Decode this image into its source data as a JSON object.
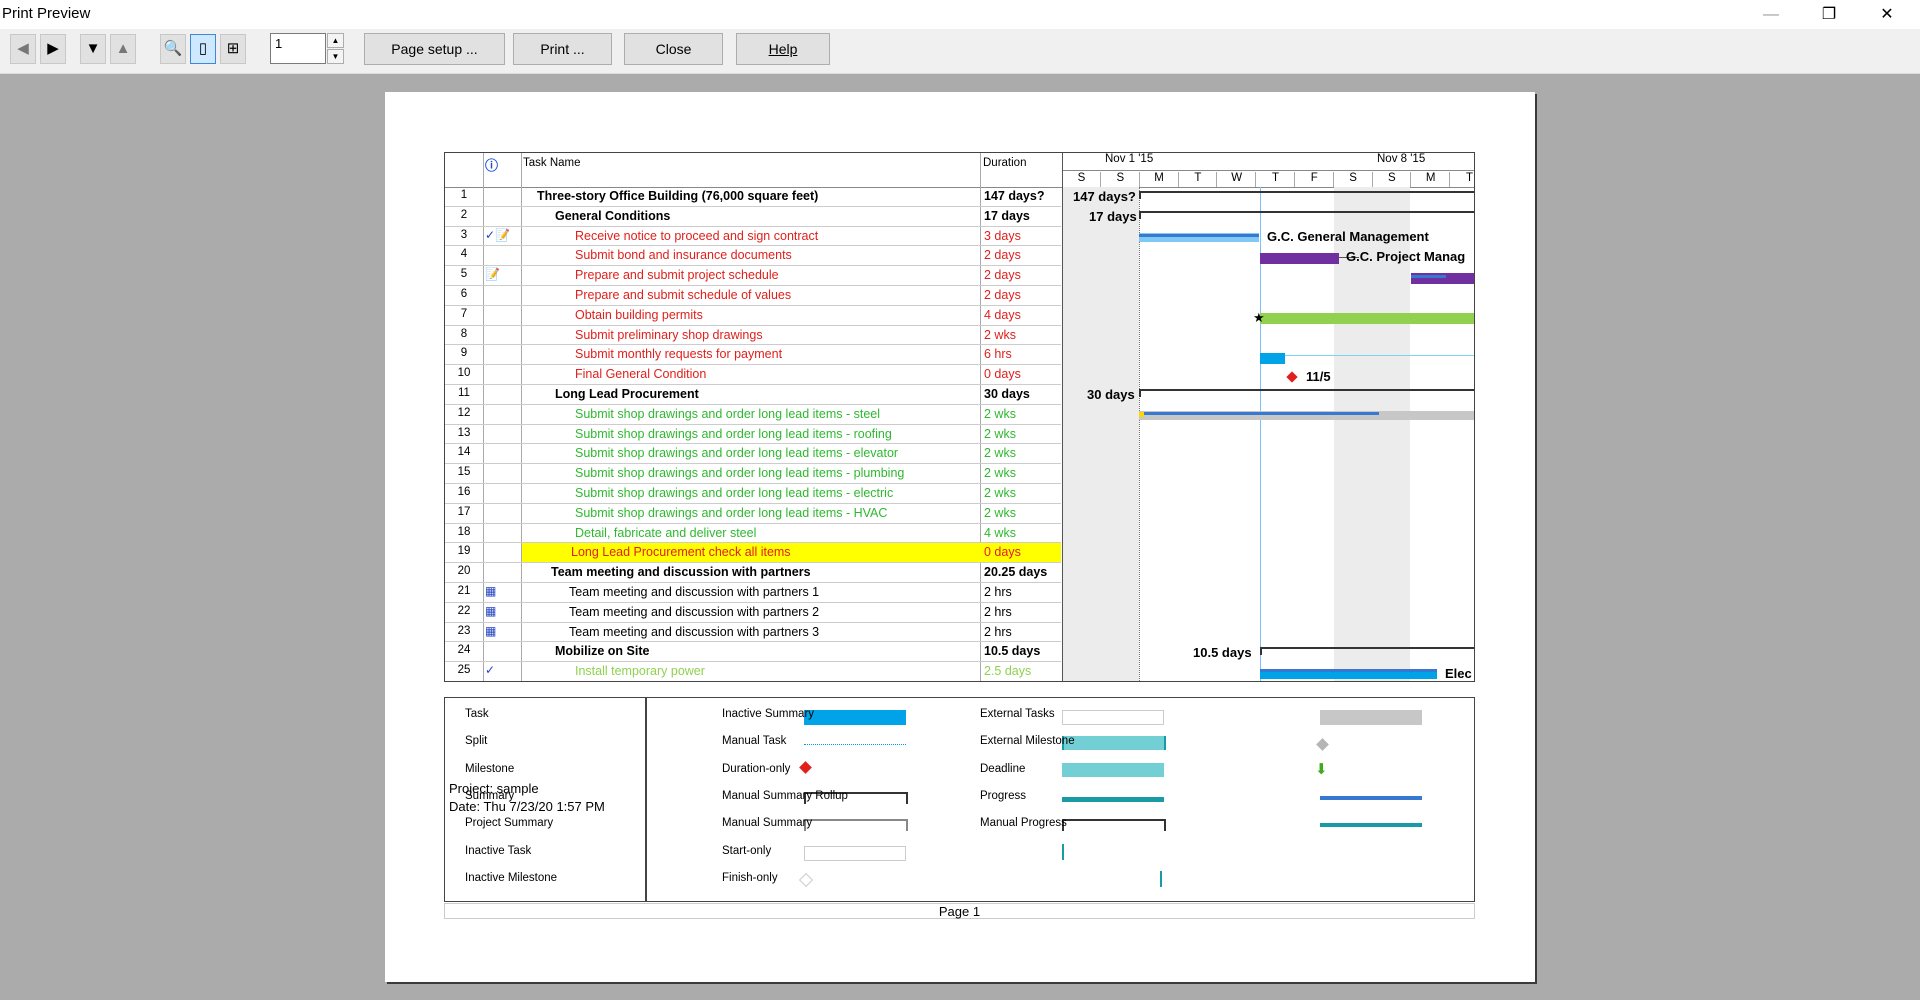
{
  "window": {
    "title": "Print Preview",
    "minimize": "—",
    "restore": "❐",
    "close": "✕"
  },
  "toolbar": {
    "prev_icon": "◀",
    "next_icon": "▶",
    "down_icon": "▼",
    "up_icon": "▲",
    "zoom_icon": "🔍",
    "one_page_icon": "▯",
    "multi_page_icon": "⊞",
    "page_value": "1",
    "spin_up": "▲",
    "spin_down": "▼",
    "page_setup": "Page setup ...",
    "print": "Print ...",
    "close": "Close",
    "help": "Help"
  },
  "table": {
    "info_icon": "ⓘ",
    "col_task_name": "Task Name",
    "col_duration": "Duration",
    "timescale": {
      "week1": "Nov 1 '15",
      "week2": "Nov 8 '15",
      "days": [
        "S",
        "S",
        "M",
        "T",
        "W",
        "T",
        "F",
        "S",
        "S",
        "M",
        "T"
      ]
    },
    "rows": [
      {
        "id": "1",
        "ind": "",
        "name": "Three-story Office Building (76,000 square feet)",
        "dur": "147 days?",
        "style": "sum0"
      },
      {
        "id": "2",
        "ind": "",
        "name": "General Conditions",
        "dur": "17 days",
        "style": "sum1"
      },
      {
        "id": "3",
        "ind": "✓📝",
        "name": "Receive notice to proceed and sign contract",
        "dur": "3 days",
        "style": "red"
      },
      {
        "id": "4",
        "ind": "",
        "name": "Submit bond and insurance documents",
        "dur": "2 days",
        "style": "red"
      },
      {
        "id": "5",
        "ind": "📝",
        "name": "Prepare and submit project schedule",
        "dur": "2 days",
        "style": "red"
      },
      {
        "id": "6",
        "ind": "",
        "name": "Prepare and submit schedule of values",
        "dur": "2 days",
        "style": "red"
      },
      {
        "id": "7",
        "ind": "",
        "name": "Obtain building permits",
        "dur": "4 days",
        "style": "red"
      },
      {
        "id": "8",
        "ind": "",
        "name": "Submit preliminary shop drawings",
        "dur": "2 wks",
        "style": "red"
      },
      {
        "id": "9",
        "ind": "",
        "name": "Submit monthly requests for payment",
        "dur": "6 hrs",
        "style": "red"
      },
      {
        "id": "10",
        "ind": "",
        "name": "Final General Condition",
        "dur": "0 days",
        "style": "red"
      },
      {
        "id": "11",
        "ind": "",
        "name": "Long Lead Procurement",
        "dur": "30 days",
        "style": "sum1"
      },
      {
        "id": "12",
        "ind": "",
        "name": "Submit shop drawings and order long lead items - steel",
        "dur": "2 wks",
        "style": "green"
      },
      {
        "id": "13",
        "ind": "",
        "name": "Submit shop drawings and order long lead items - roofing",
        "dur": "2 wks",
        "style": "green"
      },
      {
        "id": "14",
        "ind": "",
        "name": "Submit shop drawings and order long lead items - elevator",
        "dur": "2 wks",
        "style": "green"
      },
      {
        "id": "15",
        "ind": "",
        "name": "Submit shop drawings and order long lead items - plumbing",
        "dur": "2 wks",
        "style": "green"
      },
      {
        "id": "16",
        "ind": "",
        "name": "Submit shop drawings and order long lead items - electric",
        "dur": "2 wks",
        "style": "green"
      },
      {
        "id": "17",
        "ind": "",
        "name": "Submit shop drawings and order long lead items - HVAC",
        "dur": "2 wks",
        "style": "green"
      },
      {
        "id": "18",
        "ind": "",
        "name": "Detail, fabricate and deliver steel",
        "dur": "4 wks",
        "style": "green"
      },
      {
        "id": "19",
        "ind": "",
        "name": "Long Lead Procurement check all items",
        "dur": "0 days",
        "style": "highlight"
      },
      {
        "id": "20",
        "ind": "",
        "name": "Team meeting and discussion with partners",
        "dur": "20.25 days",
        "style": "sum1b"
      },
      {
        "id": "21",
        "ind": "▦",
        "name": "Team meeting and discussion with partners 1",
        "dur": "2 hrs",
        "style": "black"
      },
      {
        "id": "22",
        "ind": "▦",
        "name": "Team meeting and discussion with partners 2",
        "dur": "2 hrs",
        "style": "black"
      },
      {
        "id": "23",
        "ind": "▦",
        "name": "Team meeting and discussion with partners 3",
        "dur": "2 hrs",
        "style": "black"
      },
      {
        "id": "24",
        "ind": "",
        "name": "Mobilize on Site",
        "dur": "10.5 days",
        "style": "sum1"
      },
      {
        "id": "25",
        "ind": "✓",
        "name": "Install temporary power",
        "dur": "2.5 days",
        "style": "lightgreen"
      }
    ]
  },
  "chart_labels": {
    "r1": "147 days?",
    "r2": "17 days",
    "r3": "G.C. General Management",
    "r4": "G.C. Project Manag",
    "r10": "11/5",
    "r11": "30 days",
    "r24": "10.5 days",
    "r25": "Elec"
  },
  "legend": {
    "project": "Project: sample",
    "date": "Date: Thu 7/23/20 1:57 PM",
    "col1": [
      "Task",
      "Split",
      "Milestone",
      "Summary",
      "Project Summary",
      "Inactive Task",
      "Inactive Milestone"
    ],
    "col2": [
      "Inactive Summary",
      "Manual Task",
      "Duration-only",
      "Manual Summary Rollup",
      "Manual Summary",
      "Start-only",
      "Finish-only"
    ],
    "col3": [
      "External Tasks",
      "External Milestone",
      "Deadline",
      "Progress",
      "Manual Progress"
    ]
  },
  "footer": {
    "page": "Page 1"
  },
  "colors": {
    "red_text": "#e0201c",
    "green_text": "#2fb82f",
    "light_green_text": "#8fd14f",
    "task_bar": "#00a2e8",
    "purple_bar": "#7030a0",
    "green_bar": "#92d050",
    "highlight": "#ffff00"
  }
}
